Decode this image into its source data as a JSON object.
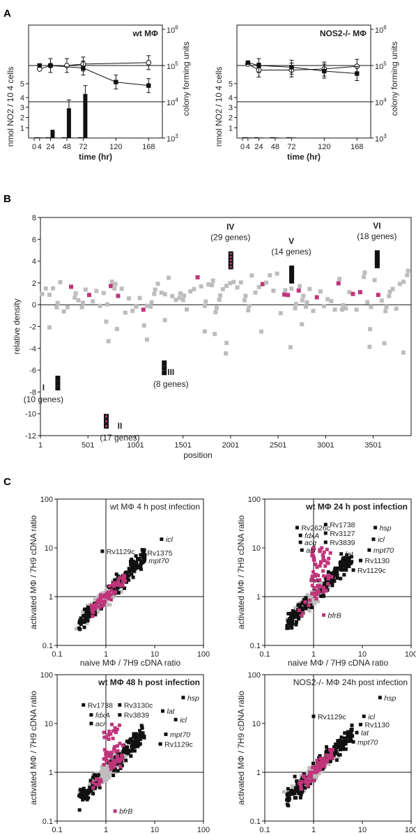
{
  "panels": {
    "A": "A",
    "B": "B",
    "C": "C"
  },
  "colors": {
    "black": "#111111",
    "gray": "#bdbdbd",
    "magenta": "#c0357a"
  },
  "chart_data": [
    {
      "id": "A-left",
      "type": "line",
      "title": "wt MΦ",
      "xlabel": "time (hr)",
      "ylabel_left": "nmol NO2 / 10 4 cells",
      "ylabel_right": "colony forming units",
      "x_ticks": [
        "0",
        "4",
        "24",
        "48",
        "72",
        "120",
        "168"
      ],
      "left_ticks": [
        "1",
        "2",
        "3",
        "4",
        "5"
      ],
      "right_ticks": [
        "10^3",
        "10^4",
        "10^5",
        "10^6"
      ],
      "log_right_axis": true,
      "cfu_series": [
        {
          "name": "open",
          "x": [
            4,
            24,
            48,
            72,
            168
          ],
          "y": [
            80000,
            100000,
            100000,
            110000,
            120000
          ]
        },
        {
          "name": "filled",
          "x": [
            4,
            24,
            72,
            120,
            168
          ],
          "y": [
            100000,
            100000,
            85000,
            35000,
            28000
          ]
        }
      ],
      "no2_bars": {
        "x": [
          4,
          24,
          48,
          72
        ],
        "open": [
          0.05,
          0.05,
          0.05,
          0.05
        ],
        "filled": [
          0.05,
          0.8,
          2.9,
          4.3
        ]
      },
      "ylim_left": [
        0,
        5.5
      ]
    },
    {
      "id": "A-right",
      "type": "line",
      "title": "NOS2-/- MΦ",
      "xlabel": "time (hr)",
      "ylabel_left": "nmol NO2 / 10 4 cells",
      "ylabel_right": "colony forming units",
      "x_ticks": [
        "0",
        "4",
        "24",
        "48",
        "72",
        "120",
        "168"
      ],
      "left_ticks": [
        "1",
        "2",
        "3",
        "4",
        "5"
      ],
      "right_ticks": [
        "10^3",
        "10^4",
        "10^5",
        "10^6"
      ],
      "log_right_axis": true,
      "cfu_series": [
        {
          "name": "open",
          "x": [
            4,
            24,
            72,
            120,
            168
          ],
          "y": [
            110000,
            75000,
            75000,
            80000,
            95000
          ]
        },
        {
          "name": "filled",
          "x": [
            4,
            24,
            72,
            120,
            168
          ],
          "y": [
            120000,
            100000,
            90000,
            70000,
            60000
          ]
        }
      ],
      "no2_bars": {
        "x": [
          4,
          24,
          48,
          72
        ],
        "open": [
          0.05,
          0.05,
          0.05,
          0.05
        ],
        "filled": [
          0.05,
          0.05,
          0.05,
          0.05
        ]
      },
      "ylim_left": [
        0,
        5.5
      ]
    },
    {
      "id": "B",
      "type": "scatter",
      "xlabel": "position",
      "ylabel": "relative density",
      "xlim": [
        1,
        3900
      ],
      "ylim": [
        -12,
        8
      ],
      "x_ticks": [
        1,
        501,
        1001,
        1501,
        2001,
        2501,
        3001,
        3501
      ],
      "y_ticks": [
        8,
        6,
        4,
        2,
        0,
        -2,
        -4,
        -6,
        -8,
        -10,
        -12
      ],
      "regions": [
        {
          "label": "I",
          "genes": "(10 genes)",
          "x": 180,
          "y": -6.7
        },
        {
          "label": "II",
          "genes": "(17 genes)",
          "x": 690,
          "y": -10.2
        },
        {
          "label": "III",
          "genes": "(8 genes)",
          "x": 1300,
          "y": -5.3
        },
        {
          "label": "IV",
          "genes": "(29 genes)",
          "x": 2000,
          "y": 4.7
        },
        {
          "label": "V",
          "genes": "(14 genes)",
          "x": 2640,
          "y": 3.4
        },
        {
          "label": "VI",
          "genes": "(18 genes)",
          "x": 3540,
          "y": 4.8
        }
      ]
    },
    {
      "id": "C1",
      "type": "scatter",
      "title": "wt MΦ 4 h post infection",
      "xlabel": "naive MΦ / 7H9 cDNA ratio",
      "ylabel": "activated MΦ / 7H9 cDNA ratio",
      "log": true,
      "ticks": [
        "0.1",
        "1",
        "10",
        "100"
      ],
      "spread_magenta": 1.0,
      "labels": [
        {
          "text": "icl",
          "italic": true,
          "x": 18,
          "y": 15
        },
        {
          "text": "Rv1129c",
          "italic": false,
          "x": 1.1,
          "y": 8.5
        },
        {
          "text": "Rv1375",
          "italic": false,
          "x": 7.5,
          "y": 8
        },
        {
          "text": "mpt70",
          "italic": true,
          "x": 8,
          "y": 5.5
        }
      ]
    },
    {
      "id": "C2",
      "type": "scatter",
      "title": "wt MΦ 24 h post infection",
      "xlabel": "naive MΦ / 7H9 cDNA ratio",
      "ylabel": "activated MΦ / 7H9 cDNA ratio",
      "log": true,
      "ticks": [
        "0.1",
        "1",
        "10",
        "100"
      ],
      "spread_magenta": 2.5,
      "labels": [
        {
          "text": "Rv2626c",
          "italic": false,
          "x": 0.6,
          "y": 26
        },
        {
          "text": "fdxA",
          "italic": true,
          "x": 0.7,
          "y": 18
        },
        {
          "text": "acg",
          "italic": true,
          "x": 0.7,
          "y": 13
        },
        {
          "text": "acr",
          "italic": true,
          "x": 0.75,
          "y": 9
        },
        {
          "text": "Rv1738",
          "italic": false,
          "x": 2.3,
          "y": 30
        },
        {
          "text": "Rv3127",
          "italic": false,
          "x": 2.3,
          "y": 20
        },
        {
          "text": "Rv3839",
          "italic": false,
          "x": 2.3,
          "y": 13
        },
        {
          "text": "lat",
          "italic": true,
          "x": 4.8,
          "y": 7.5
        },
        {
          "text": "hsp",
          "italic": true,
          "x": 24,
          "y": 26
        },
        {
          "text": "icl",
          "italic": true,
          "x": 22,
          "y": 15
        },
        {
          "text": "mpt70",
          "italic": true,
          "x": 18,
          "y": 9
        },
        {
          "text": "Rv1130",
          "italic": false,
          "x": 12,
          "y": 5.5
        },
        {
          "text": "Rv1129c",
          "italic": false,
          "x": 8.5,
          "y": 3.5
        },
        {
          "text": "bfrB",
          "italic": true,
          "x": 2.1,
          "y": 0.42
        }
      ]
    },
    {
      "id": "C3",
      "type": "scatter",
      "title": "wt MΦ 48 h post infection",
      "xlabel": "naive MΦ / 7H9 cDNA ratio",
      "ylabel": "activated MΦ / 7H9 cDNA ratio",
      "log": true,
      "ticks": [
        "0.1",
        "1",
        "10",
        "100"
      ],
      "spread_magenta": 2.5,
      "labels": [
        {
          "text": "Rv1738",
          "italic": false,
          "x": 0.45,
          "y": 24
        },
        {
          "text": "fdxA",
          "italic": true,
          "x": 0.65,
          "y": 15
        },
        {
          "text": "acr",
          "italic": true,
          "x": 0.65,
          "y": 10
        },
        {
          "text": "Rv3130c",
          "italic": false,
          "x": 2.5,
          "y": 24
        },
        {
          "text": "Rv3839",
          "italic": false,
          "x": 2.5,
          "y": 15
        },
        {
          "text": "hsp",
          "italic": true,
          "x": 50,
          "y": 34
        },
        {
          "text": "lat",
          "italic": true,
          "x": 19,
          "y": 18
        },
        {
          "text": "icl",
          "italic": true,
          "x": 35,
          "y": 12
        },
        {
          "text": "mpt70",
          "italic": true,
          "x": 22,
          "y": 6
        },
        {
          "text": "Rv1129c",
          "italic": false,
          "x": 17,
          "y": 3.8
        },
        {
          "text": "bfrB",
          "italic": true,
          "x": 2.0,
          "y": 0.16
        }
      ]
    },
    {
      "id": "C4",
      "type": "scatter",
      "title": "NOS2-/- MΦ 24h post infection",
      "xlabel": "naive MΦ / 7H9 cDNA ratio",
      "ylabel": "activated MΦ / 7H9 cDNA ratio",
      "log": true,
      "ticks": [
        "0.1",
        "1",
        "10",
        "100"
      ],
      "spread_magenta": 1.0,
      "labels": [
        {
          "text": "hsp",
          "italic": true,
          "x": 30,
          "y": 34
        },
        {
          "text": "Rv1129c",
          "italic": false,
          "x": 1.3,
          "y": 14
        },
        {
          "text": "icl",
          "italic": true,
          "x": 14,
          "y": 14
        },
        {
          "text": "Rv1130",
          "italic": false,
          "x": 12,
          "y": 9.5
        },
        {
          "text": "lat",
          "italic": true,
          "x": 10,
          "y": 6.5
        },
        {
          "text": "mpt70",
          "italic": true,
          "x": 8.5,
          "y": 4.2
        }
      ]
    }
  ]
}
